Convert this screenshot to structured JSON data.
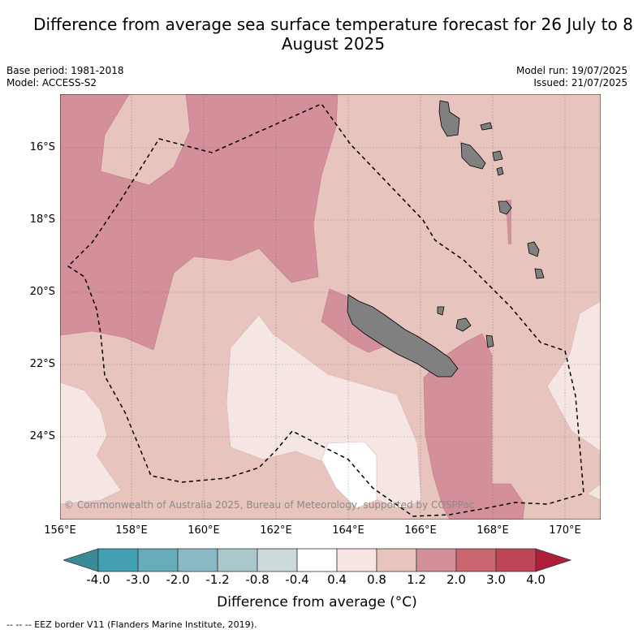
{
  "title": "Difference from average sea surface temperature forecast for 26 July to 8 August 2025",
  "base_period": "Base period: 1981-2018",
  "model": "Model: ACCESS-S2",
  "model_run": "Model run: 19/07/2025",
  "issued": "Issued: 21/07/2025",
  "copyright": "© Commonwealth of Australia 2025, Bureau of Meteorology, supported by COSPPac",
  "lat_labels": [
    "16°S",
    "18°S",
    "20°S",
    "22°S",
    "24°S"
  ],
  "lon_labels": [
    "156°E",
    "158°E",
    "160°E",
    "162°E",
    "164°E",
    "166°E",
    "168°E",
    "170°E"
  ],
  "colorbar": {
    "ticks": [
      "-4.0",
      "-3.0",
      "-2.0",
      "-1.2",
      "-0.8",
      "-0.4",
      "0.4",
      "0.8",
      "1.2",
      "2.0",
      "3.0",
      "4.0"
    ],
    "colors": [
      "#42a0b2",
      "#67acbb",
      "#8ab8c4",
      "#a9c8cc",
      "#ccdadb",
      "#ffffff",
      "#f5e6e4",
      "#e8c4bf",
      "#d4909a",
      "#c9666f",
      "#bd4556"
    ],
    "under_color": "#3a8b98",
    "over_color": "#b01e3a",
    "label": "Difference from average (°C)"
  },
  "legend_note": "-- -- -- EEZ border V11 (Flanders Marine Institute, 2019)."
}
